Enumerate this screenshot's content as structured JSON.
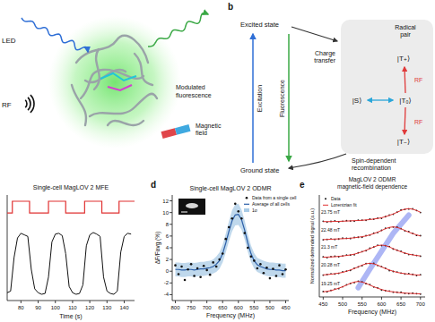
{
  "diagram": {
    "panel_a": {
      "light_source": "LED",
      "rf": "RF",
      "fluorescence": [
        "Modulated",
        "fluorescence"
      ],
      "magnet": [
        "Magnetic",
        "field"
      ]
    },
    "panel_b": {
      "panel_label": "b",
      "excited_state": "Excited state",
      "ground_state": "Ground state",
      "excitation": "Excitation",
      "fluorescence": "Fluorescence",
      "charge_transfer": [
        "Charge",
        "transfer"
      ],
      "radical_pair": [
        "Radical",
        "pair"
      ],
      "states": {
        "t_plus": "|T₊⟩",
        "s": "|S⟩",
        "t_zero": "|T₀⟩",
        "t_minus": "|T₋⟩"
      },
      "rf_labels": [
        "RF",
        "RF"
      ],
      "recombination": [
        "Spin-dependent",
        "recombination"
      ]
    }
  },
  "chart_data": [
    {
      "type": "line",
      "title": "Single-cell MagLOV 2 MFE",
      "x_label": "Time (s)",
      "xlim": [
        72,
        146
      ],
      "xticks": [
        80,
        90,
        100,
        110,
        120,
        130,
        140
      ],
      "ylim": [
        0,
        1.35
      ],
      "tick_labels": "x",
      "series": [
        {
          "color": "#e03030",
          "line_style": "step",
          "x": [
            72,
            75,
            85,
            96,
            106,
            117,
            127,
            137,
            146
          ],
          "values": [
            1.12,
            1.27,
            1.12,
            1.27,
            1.12,
            1.27,
            1.12,
            1.27,
            1.27
          ]
        },
        {
          "color": "#111111",
          "line_style": "solid",
          "x": [
            72,
            74,
            76,
            78,
            80,
            82,
            84,
            86,
            88,
            90,
            92,
            94,
            96,
            98,
            100,
            102,
            104,
            106,
            108,
            110,
            112,
            114,
            116,
            118,
            120,
            122,
            124,
            126,
            128,
            130,
            132,
            134,
            136,
            138,
            140,
            142,
            144
          ],
          "values": [
            0.1,
            0.12,
            0.55,
            0.8,
            0.86,
            0.84,
            0.82,
            0.4,
            0.15,
            0.1,
            0.08,
            0.09,
            0.3,
            0.75,
            0.85,
            0.86,
            0.83,
            0.6,
            0.18,
            0.1,
            0.08,
            0.09,
            0.2,
            0.7,
            0.84,
            0.87,
            0.85,
            0.82,
            0.3,
            0.12,
            0.09,
            0.08,
            0.12,
            0.62,
            0.82,
            0.86,
            0.85
          ]
        }
      ]
    },
    {
      "type": "scatter",
      "panel_label": "d",
      "title": "Single-cell MagLOV 2 ODMR",
      "x_label": "Frequency (MHz)",
      "y_label": "ΔF/Favg (%)",
      "x": [
        800,
        790,
        780,
        770,
        760,
        750,
        740,
        730,
        720,
        710,
        700,
        690,
        680,
        670,
        660,
        650,
        640,
        630,
        620,
        610,
        600,
        590,
        580,
        570,
        560,
        550,
        540,
        530,
        520,
        510,
        500,
        490,
        480,
        470,
        460,
        450
      ],
      "xlim": [
        810,
        440
      ],
      "xticks": [
        800,
        750,
        700,
        650,
        600,
        550,
        500,
        450
      ],
      "ylim": [
        -5,
        13
      ],
      "yticks": [
        -4,
        -2,
        0,
        2,
        4,
        6,
        8,
        10,
        12
      ],
      "legend": "upper right",
      "series": [
        {
          "name": "Data from a single cell",
          "type": "scatter",
          "color": "#111111",
          "marker": "circle",
          "values": [
            1.0,
            -0.5,
            0.8,
            -1.5,
            0.3,
            1.2,
            -0.8,
            0.5,
            -1.0,
            0.9,
            0.2,
            -0.6,
            1.5,
            0.8,
            2.0,
            3.0,
            5.5,
            7.5,
            9.0,
            11.5,
            10.2,
            9.0,
            6.5,
            4.0,
            2.5,
            1.8,
            0.5,
            1.2,
            -0.3,
            0.6,
            -1.2,
            0.4,
            -0.8,
            1.0,
            -0.5,
            0.3
          ]
        },
        {
          "name": "Average of all cells",
          "type": "line",
          "color": "#2c5fa8",
          "values": [
            0.3,
            0.3,
            0.2,
            0.2,
            0.3,
            0.3,
            0.2,
            0.3,
            0.4,
            0.4,
            0.5,
            0.6,
            0.8,
            1.2,
            1.8,
            3.0,
            4.8,
            6.8,
            8.6,
            9.6,
            9.7,
            8.8,
            7.0,
            4.8,
            3.0,
            1.8,
            1.1,
            0.8,
            0.6,
            0.4,
            0.3,
            0.3,
            0.2,
            0.2,
            0.1,
            0.1
          ]
        },
        {
          "name": "1σ",
          "type": "band",
          "color": "#a9cbe6",
          "values": [
            1.2,
            1.2,
            1.2,
            1.2,
            1.2,
            1.2,
            1.2,
            1.2,
            1.2,
            1.2,
            1.2,
            1.2,
            1.2,
            1.3,
            1.4,
            1.5,
            1.6,
            1.7,
            1.8,
            1.8,
            1.8,
            1.7,
            1.6,
            1.5,
            1.4,
            1.3,
            1.2,
            1.2,
            1.2,
            1.2,
            1.2,
            1.2,
            1.2,
            1.2,
            1.2,
            1.2
          ]
        }
      ]
    },
    {
      "type": "line",
      "panel_label": "e",
      "title": [
        "MagLOV 2 ODMR",
        "magnetic-field dependence"
      ],
      "x_label": "Frequency (MHz)",
      "y_label": "Normalized detrended signal (a.u.)",
      "x": [
        450,
        460,
        470,
        480,
        490,
        500,
        510,
        520,
        530,
        540,
        550,
        560,
        570,
        580,
        590,
        600,
        610,
        620,
        630,
        640,
        650,
        660,
        670,
        680,
        690,
        700
      ],
      "xlim": [
        440,
        712
      ],
      "xticks": [
        450,
        500,
        550,
        600,
        650,
        700
      ],
      "ylim": [
        0,
        5.6
      ],
      "tick_labels": "x",
      "legend": "upper left",
      "legend_entries": [
        {
          "name": "Data",
          "marker": "circle",
          "color": "#111111"
        },
        {
          "name": "Lorentzian fit",
          "line_style": "solid",
          "color": "#e03030"
        }
      ],
      "series": [
        {
          "name": "23.75 mT",
          "peak": 670,
          "values": [
            4.16,
            4.11,
            4.15,
            4.18,
            4.13,
            4.16,
            4.19,
            4.17,
            4.16,
            4.22,
            4.22,
            4.21,
            4.28,
            4.27,
            4.33,
            4.32,
            4.41,
            4.5,
            4.54,
            4.66,
            4.78,
            4.81,
            4.83,
            4.84,
            4.75,
            4.64
          ],
          "fit": [
            4.14,
            4.14,
            4.14,
            4.15,
            4.15,
            4.16,
            4.17,
            4.18,
            4.19,
            4.2,
            4.21,
            4.23,
            4.25,
            4.28,
            4.31,
            4.35,
            4.41,
            4.48,
            4.56,
            4.65,
            4.75,
            4.82,
            4.85,
            4.82,
            4.75,
            4.65
          ]
        },
        {
          "name": "22.48 mT",
          "peak": 630,
          "values": [
            3.14,
            3.16,
            3.19,
            3.16,
            3.18,
            3.23,
            3.22,
            3.21,
            3.27,
            3.28,
            3.28,
            3.37,
            3.4,
            3.51,
            3.54,
            3.66,
            3.77,
            3.79,
            3.84,
            3.84,
            3.75,
            3.63,
            3.59,
            3.49,
            3.38,
            3.37
          ],
          "fit": [
            3.15,
            3.16,
            3.17,
            3.18,
            3.19,
            3.2,
            3.21,
            3.23,
            3.25,
            3.28,
            3.31,
            3.35,
            3.41,
            3.48,
            3.56,
            3.65,
            3.75,
            3.82,
            3.85,
            3.82,
            3.75,
            3.65,
            3.56,
            3.48,
            3.41,
            3.35
          ]
        },
        {
          "name": "21.3 mT",
          "peak": 600,
          "values": [
            2.2,
            2.16,
            2.21,
            2.24,
            2.21,
            2.25,
            2.3,
            2.3,
            2.32,
            2.43,
            2.49,
            2.54,
            2.68,
            2.74,
            2.84,
            2.82,
            2.82,
            2.77,
            2.63,
            2.57,
            2.51,
            2.4,
            2.33,
            2.33,
            2.28,
            2.24
          ],
          "fit": [
            2.18,
            2.19,
            2.2,
            2.21,
            2.23,
            2.25,
            2.28,
            2.31,
            2.35,
            2.41,
            2.48,
            2.56,
            2.65,
            2.75,
            2.82,
            2.85,
            2.82,
            2.75,
            2.65,
            2.56,
            2.48,
            2.41,
            2.35,
            2.31,
            2.28,
            2.25
          ]
        },
        {
          "name": "20.28 mT",
          "peak": 570,
          "values": [
            1.2,
            1.23,
            1.27,
            1.26,
            1.3,
            1.38,
            1.42,
            1.46,
            1.58,
            1.65,
            1.72,
            1.84,
            1.84,
            1.85,
            1.73,
            1.66,
            1.58,
            1.45,
            1.4,
            1.37,
            1.31,
            1.26,
            1.28,
            1.24,
            1.18,
            1.22
          ],
          "fit": [
            1.21,
            1.23,
            1.25,
            1.28,
            1.31,
            1.35,
            1.41,
            1.48,
            1.56,
            1.65,
            1.75,
            1.82,
            1.85,
            1.82,
            1.75,
            1.65,
            1.56,
            1.48,
            1.41,
            1.35,
            1.31,
            1.28,
            1.25,
            1.23,
            1.21,
            1.2
          ]
        },
        {
          "name": "19.25 mT",
          "peak": 540,
          "values": [
            0.3,
            0.28,
            0.36,
            0.44,
            0.46,
            0.56,
            0.67,
            0.74,
            0.79,
            0.87,
            0.83,
            0.73,
            0.68,
            0.55,
            0.5,
            0.38,
            0.35,
            0.33,
            0.26,
            0.26,
            0.26,
            0.2,
            0.18,
            0.21,
            0.18,
            0.16
          ],
          "fit": [
            0.28,
            0.31,
            0.35,
            0.41,
            0.48,
            0.56,
            0.65,
            0.75,
            0.82,
            0.85,
            0.82,
            0.75,
            0.65,
            0.56,
            0.48,
            0.41,
            0.35,
            0.31,
            0.28,
            0.25,
            0.23,
            0.21,
            0.2,
            0.19,
            0.18,
            0.17
          ]
        }
      ]
    }
  ]
}
